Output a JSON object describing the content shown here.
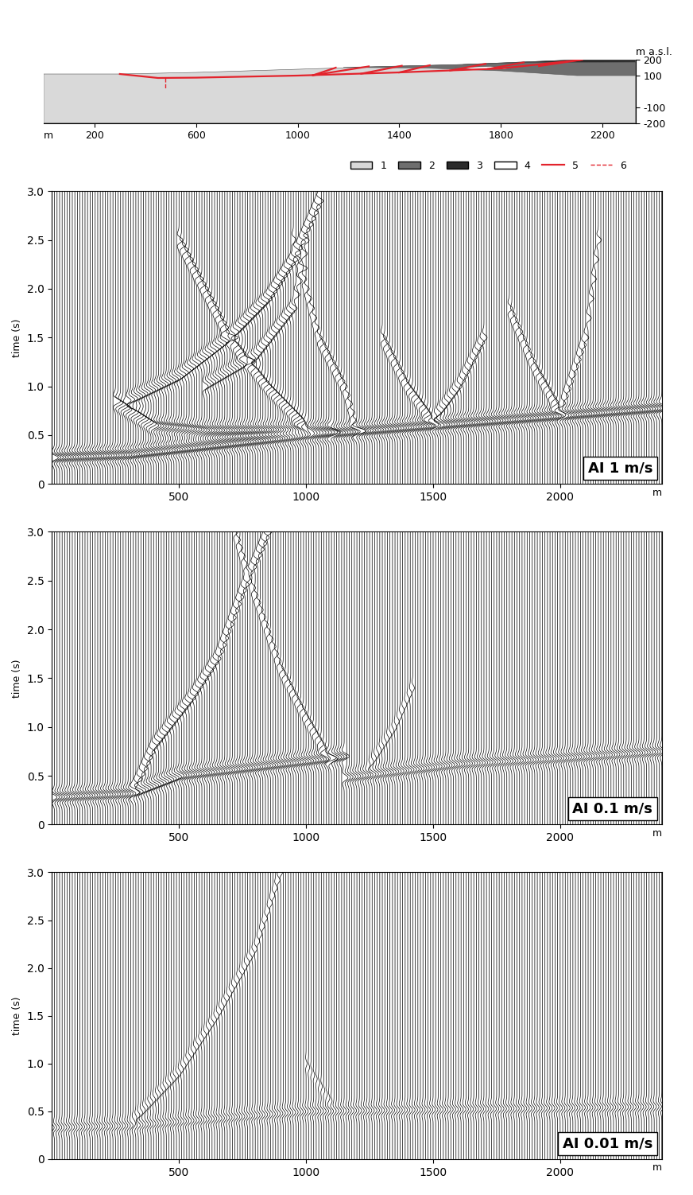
{
  "chart_data": [
    {
      "type": "section",
      "xlabel": "m",
      "ylabel": "m a.s.l.",
      "xlim": [
        0,
        2330
      ],
      "xticks": [
        200,
        600,
        1000,
        1400,
        1800,
        2200
      ],
      "ylim": [
        -200,
        200
      ],
      "yticks": [
        -200,
        -100,
        100,
        200
      ],
      "legend": "upper right",
      "units": [
        {
          "name": "1",
          "color": "#d9d9d9",
          "polygon": [
            [
              0,
              -200
            ],
            [
              0,
              110
            ],
            [
              300,
              110
            ],
            [
              600,
              120
            ],
            [
              1000,
              140
            ],
            [
              1400,
              160
            ],
            [
              1650,
              170
            ],
            [
              2100,
              200
            ],
            [
              2330,
              200
            ],
            [
              2330,
              -200
            ]
          ]
        },
        {
          "name": "2",
          "color": "#6e6e6e",
          "polygon": [
            [
              1180,
              152
            ],
            [
              1400,
              160
            ],
            [
              1650,
              170
            ],
            [
              1900,
              182
            ],
            [
              2330,
              185
            ],
            [
              2330,
              100
            ],
            [
              2100,
              100
            ],
            [
              1800,
              130
            ],
            [
              1500,
              148
            ]
          ]
        },
        {
          "name": "3",
          "color": "#2b2b2b",
          "polygon": [
            [
              1650,
              170
            ],
            [
              2100,
              200
            ],
            [
              2330,
              200
            ],
            [
              2330,
              185
            ],
            [
              1900,
              182
            ]
          ]
        },
        {
          "name": "4",
          "color": "#ffffff",
          "polygon": [
            [
              1620,
              150
            ],
            [
              1760,
              158
            ],
            [
              1840,
              140
            ],
            [
              1700,
              138
            ]
          ]
        }
      ],
      "slip_surfaces": {
        "name": "5",
        "color": "#e3232c",
        "lines": [
          [
            [
              300,
              110
            ],
            [
              450,
              85
            ],
            [
              600,
              87
            ],
            [
              1000,
              100
            ],
            [
              1400,
              120
            ],
            [
              1800,
              145
            ],
            [
              2120,
              200
            ]
          ],
          [
            [
              1060,
              102
            ],
            [
              1150,
              150
            ]
          ],
          [
            [
              1060,
              102
            ],
            [
              1280,
              158
            ]
          ],
          [
            [
              1250,
              112
            ],
            [
              1410,
              162
            ]
          ],
          [
            [
              1400,
              120
            ],
            [
              1520,
              165
            ]
          ],
          [
            [
              1600,
              132
            ],
            [
              1740,
              174
            ]
          ],
          [
            [
              1750,
              142
            ],
            [
              1890,
              183
            ]
          ],
          [
            [
              1950,
              160
            ],
            [
              2110,
              198
            ]
          ]
        ]
      },
      "borehole": {
        "name": "6",
        "color": "#e3232c",
        "line_style": "dashed",
        "line": [
          [
            480,
            86
          ],
          [
            480,
            20
          ]
        ]
      }
    },
    {
      "type": "wiggle",
      "label": "AI 1 m/s",
      "xlabel": "m",
      "ylabel": "time (s)",
      "xlim": [
        0,
        2400
      ],
      "xticks": [
        500,
        1000,
        1500,
        2000
      ],
      "ylim": [
        0,
        3
      ],
      "yticks": [
        0,
        0.5,
        {
          "value": 1,
          "label": "1.0"
        },
        1.5,
        {
          "value": 2,
          "label": "2.0"
        },
        2.5,
        {
          "value": 3,
          "label": "3.0"
        }
      ],
      "trace_spacing": 10,
      "color": "#000000",
      "events": [
        {
          "amplitude": 1,
          "path": [
            [
              0,
              0.27
            ],
            [
              300,
              0.3
            ],
            [
              1000,
              0.5
            ],
            [
              1500,
              0.6
            ],
            [
              2000,
              0.7
            ],
            [
              2400,
              0.78
            ]
          ]
        },
        {
          "amplitude": 0.8,
          "path": [
            [
              250,
              0.85
            ],
            [
              400,
              0.6
            ],
            [
              600,
              0.55
            ],
            [
              1100,
              0.55
            ]
          ]
        },
        {
          "amplitude": 0.7,
          "path": [
            [
              300,
              0.85
            ],
            [
              500,
              1.1
            ],
            [
              700,
              1.5
            ],
            [
              850,
              1.9
            ],
            [
              950,
              2.3
            ],
            [
              1050,
              2.9
            ]
          ]
        },
        {
          "amplitude": 0.6,
          "path": [
            [
              600,
              1.0
            ],
            [
              800,
              1.3
            ],
            [
              950,
              1.8
            ],
            [
              1000,
              2.5
            ]
          ]
        },
        {
          "amplitude": 0.6,
          "path": [
            [
              500,
              2.5
            ],
            [
              600,
              2.0
            ],
            [
              700,
              1.5
            ],
            [
              850,
              1.0
            ],
            [
              1000,
              0.6
            ]
          ]
        },
        {
          "amplitude": 0.5,
          "path": [
            [
              1300,
              1.5
            ],
            [
              1400,
              1.0
            ],
            [
              1500,
              0.65
            ],
            [
              1600,
              1.0
            ],
            [
              1700,
              1.5
            ]
          ]
        },
        {
          "amplitude": 0.5,
          "path": [
            [
              1800,
              1.8
            ],
            [
              1900,
              1.2
            ],
            [
              2000,
              0.75
            ],
            [
              2100,
              1.5
            ],
            [
              2150,
              2.5
            ]
          ]
        },
        {
          "amplitude": 0.5,
          "path": [
            [
              950,
              2.5
            ],
            [
              1050,
              1.5
            ],
            [
              1150,
              1.0
            ],
            [
              1200,
              0.55
            ]
          ]
        }
      ]
    },
    {
      "type": "wiggle",
      "label": "AI 0.1 m/s",
      "xlabel": "m",
      "ylabel": "time (s)",
      "xlim": [
        0,
        2400
      ],
      "xticks": [
        500,
        1000,
        1500,
        2000
      ],
      "ylim": [
        0,
        3
      ],
      "yticks": [
        0,
        0.5,
        {
          "value": 1,
          "label": "1.0"
        },
        1.5,
        {
          "value": 2,
          "label": "2.0"
        },
        2.5,
        {
          "value": 3,
          "label": "3.0"
        }
      ],
      "trace_spacing": 10,
      "color": "#000000",
      "events": [
        {
          "amplitude": 0.8,
          "path": [
            [
              0,
              0.28
            ],
            [
              320,
              0.32
            ],
            [
              500,
              0.5
            ],
            [
              1000,
              0.65
            ],
            [
              1150,
              0.7
            ]
          ]
        },
        {
          "amplitude": 0.6,
          "path": [
            [
              1150,
              0.48
            ],
            [
              1600,
              0.62
            ],
            [
              2000,
              0.68
            ],
            [
              2400,
              0.75
            ]
          ]
        },
        {
          "amplitude": 0.6,
          "path": [
            [
              320,
              0.35
            ],
            [
              400,
              0.8
            ],
            [
              550,
              1.3
            ],
            [
              650,
              1.7
            ],
            [
              750,
              2.4
            ],
            [
              850,
              3.0
            ]
          ]
        },
        {
          "amplitude": 0.45,
          "path": [
            [
              720,
              3.0
            ],
            [
              780,
              2.5
            ],
            [
              900,
              1.6
            ],
            [
              1000,
              1.1
            ],
            [
              1100,
              0.65
            ]
          ]
        },
        {
          "amplitude": 0.25,
          "path": [
            [
              1250,
              0.6
            ],
            [
              1350,
              1.0
            ],
            [
              1420,
              1.4
            ]
          ]
        }
      ]
    },
    {
      "type": "wiggle",
      "label": "AI 0.01 m/s",
      "xlabel": "m",
      "ylabel": "time (s)",
      "xlim": [
        0,
        2400
      ],
      "xticks": [
        500,
        1000,
        1500,
        2000
      ],
      "ylim": [
        0,
        3
      ],
      "yticks": [
        0,
        0.5,
        {
          "value": 1,
          "label": "1.0"
        },
        1.5,
        {
          "value": 2,
          "label": "2.0"
        },
        2.5,
        {
          "value": 3,
          "label": "3.0"
        }
      ],
      "trace_spacing": 10,
      "color": "#000000",
      "events": [
        {
          "amplitude": 0.35,
          "path": [
            [
              0,
              0.33
            ],
            [
              300,
              0.35
            ],
            [
              1000,
              0.5
            ],
            [
              2400,
              0.55
            ]
          ]
        },
        {
          "amplitude": 0.3,
          "path": [
            [
              320,
              0.4
            ],
            [
              500,
              0.9
            ],
            [
              650,
              1.5
            ],
            [
              800,
              2.2
            ],
            [
              900,
              3.0
            ]
          ]
        },
        {
          "amplitude": 0.15,
          "path": [
            [
              1000,
              1.0
            ],
            [
              1100,
              0.6
            ]
          ]
        }
      ]
    }
  ]
}
